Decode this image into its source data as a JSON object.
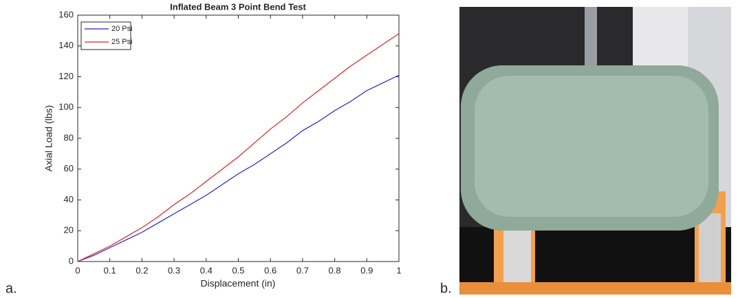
{
  "chart_data": {
    "type": "line",
    "title": "Inflated Beam 3 Point Bend Test",
    "x_label": "Displacement (in)",
    "y_label": "Axial Load (lbs)",
    "x": [
      0,
      0.05,
      0.1,
      0.15,
      0.2,
      0.25,
      0.3,
      0.35,
      0.4,
      0.45,
      0.5,
      0.55,
      0.6,
      0.65,
      0.7,
      0.75,
      0.8,
      0.85,
      0.9,
      0.95,
      1
    ],
    "series": [
      {
        "name": "20 Psi",
        "color": "#1f1fd8",
        "values": [
          0,
          4,
          9,
          14,
          19,
          25,
          31,
          37,
          43,
          50,
          57,
          63,
          70,
          77,
          85,
          91,
          98,
          104,
          111,
          116,
          121
        ]
      },
      {
        "name": "25 Psi",
        "color": "#e02020",
        "values": [
          0,
          5,
          10,
          16,
          22,
          29,
          37,
          44,
          52,
          60,
          68,
          77,
          86,
          94,
          103,
          111,
          119,
          127,
          134,
          141,
          148
        ]
      }
    ],
    "xlim": [
      0,
      1
    ],
    "xticks": [
      0,
      0.1,
      0.2,
      0.3,
      0.4,
      0.5,
      0.6,
      0.7,
      0.8,
      0.9,
      1
    ],
    "ylim": [
      0,
      160
    ],
    "yticks": [
      0,
      20,
      40,
      60,
      80,
      100,
      120,
      140,
      160
    ],
    "grid": false,
    "legend": "upper-left"
  },
  "panel_labels": [
    "a.",
    "b."
  ]
}
